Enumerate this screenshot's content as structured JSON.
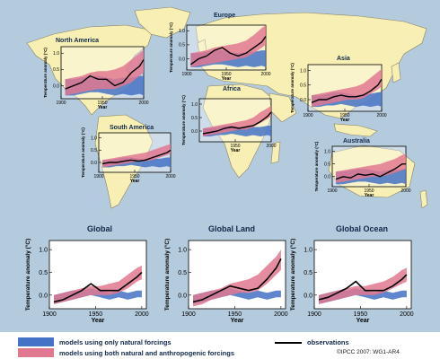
{
  "colors": {
    "ocean": "#b4cbdd",
    "land": "#f7efb3",
    "land_edge": "#8a8260",
    "lower_bg": "#b4cbdd",
    "natural": "#4472c4",
    "anthropogenic": "#e07890",
    "overlap": "#8a5a9a",
    "observation": "#000000"
  },
  "legend": {
    "natural_label": "models using only natural forcings",
    "anthro_label": "models using both natural and anthropogenic forcings",
    "obs_label": "observations"
  },
  "credit": "©IPCC  2007: WG1-AR4",
  "chart_data": [
    {
      "type": "area",
      "title": "North America",
      "ylabel": "Temperature anomaly (°C)",
      "xlabel": "Year",
      "xticks": [
        "1900",
        "1950",
        "2000"
      ],
      "yticks": [
        "0.0",
        "0.5",
        "1.0"
      ],
      "xlim": [
        1900,
        2000
      ],
      "ylim": [
        -0.4,
        1.2
      ],
      "x": [
        1905,
        1915,
        1925,
        1935,
        1945,
        1955,
        1965,
        1975,
        1985,
        1995,
        2000
      ],
      "observations": [
        -0.1,
        0.0,
        0.1,
        0.3,
        0.2,
        0.2,
        0.0,
        0.1,
        0.4,
        0.6,
        0.8
      ],
      "natural": {
        "low": [
          -0.3,
          -0.3,
          -0.25,
          -0.2,
          -0.2,
          -0.25,
          -0.3,
          -0.25,
          -0.3,
          -0.25,
          -0.3
        ],
        "high": [
          0.2,
          0.2,
          0.25,
          0.3,
          0.3,
          0.25,
          0.2,
          0.25,
          0.25,
          0.3,
          0.3
        ]
      },
      "anthropogenic": {
        "low": [
          -0.3,
          -0.25,
          -0.2,
          -0.15,
          -0.1,
          -0.1,
          -0.1,
          0.0,
          0.1,
          0.3,
          0.4
        ],
        "high": [
          0.2,
          0.25,
          0.3,
          0.4,
          0.45,
          0.45,
          0.5,
          0.6,
          0.8,
          1.0,
          1.1
        ]
      }
    },
    {
      "type": "area",
      "title": "Europe",
      "ylabel": "Temperature anomaly (°C)",
      "xlabel": "Year",
      "xticks": [
        "1900",
        "1950",
        "2000"
      ],
      "yticks": [
        "0.0",
        "0.5",
        "1.0"
      ],
      "xlim": [
        1900,
        2000
      ],
      "ylim": [
        -0.4,
        1.2
      ],
      "x": [
        1905,
        1915,
        1925,
        1935,
        1945,
        1955,
        1965,
        1975,
        1985,
        1995,
        2000
      ],
      "observations": [
        -0.2,
        0.0,
        0.1,
        0.3,
        0.4,
        0.2,
        0.1,
        0.2,
        0.4,
        0.6,
        0.8
      ],
      "natural": {
        "low": [
          -0.3,
          -0.3,
          -0.25,
          -0.2,
          -0.2,
          -0.25,
          -0.3,
          -0.25,
          -0.3,
          -0.25,
          -0.3
        ],
        "high": [
          0.2,
          0.2,
          0.25,
          0.3,
          0.3,
          0.25,
          0.2,
          0.25,
          0.25,
          0.3,
          0.3
        ]
      },
      "anthropogenic": {
        "low": [
          -0.3,
          -0.25,
          -0.2,
          -0.15,
          -0.1,
          -0.05,
          0.0,
          0.05,
          0.2,
          0.4,
          0.5
        ],
        "high": [
          0.2,
          0.25,
          0.3,
          0.4,
          0.45,
          0.5,
          0.55,
          0.65,
          0.85,
          1.1,
          1.2
        ]
      }
    },
    {
      "type": "area",
      "title": "Asia",
      "ylabel": "Temperature anomaly (°C)",
      "xlabel": "Year",
      "xticks": [
        "1900",
        "1950",
        "2000"
      ],
      "yticks": [
        "0.0",
        "0.5",
        "1.0"
      ],
      "xlim": [
        1900,
        2000
      ],
      "ylim": [
        -0.4,
        1.2
      ],
      "x": [
        1905,
        1915,
        1925,
        1935,
        1945,
        1955,
        1965,
        1975,
        1985,
        1995,
        2000
      ],
      "observations": [
        -0.1,
        0.0,
        0.0,
        0.1,
        0.15,
        0.1,
        0.1,
        0.15,
        0.3,
        0.5,
        0.7
      ],
      "natural": {
        "low": [
          -0.25,
          -0.25,
          -0.2,
          -0.2,
          -0.15,
          -0.2,
          -0.25,
          -0.2,
          -0.25,
          -0.2,
          -0.25
        ],
        "high": [
          0.15,
          0.15,
          0.2,
          0.25,
          0.25,
          0.2,
          0.15,
          0.2,
          0.2,
          0.25,
          0.25
        ]
      },
      "anthropogenic": {
        "low": [
          -0.25,
          -0.2,
          -0.15,
          -0.1,
          -0.05,
          0.0,
          0.0,
          0.05,
          0.2,
          0.35,
          0.45
        ],
        "high": [
          0.15,
          0.2,
          0.25,
          0.3,
          0.35,
          0.4,
          0.45,
          0.55,
          0.75,
          0.95,
          1.05
        ]
      }
    },
    {
      "type": "area",
      "title": "Africa",
      "ylabel": "Temperature anomaly (°C)",
      "xlabel": "Year",
      "xticks": [
        "1950",
        "2000"
      ],
      "yticks": [
        "0.0",
        "0.5",
        "1.0"
      ],
      "xlim": [
        1900,
        2000
      ],
      "ylim": [
        -0.4,
        1.2
      ],
      "x": [
        1905,
        1915,
        1925,
        1935,
        1945,
        1955,
        1965,
        1975,
        1985,
        1995,
        2000
      ],
      "observations": [
        -0.1,
        -0.05,
        0.0,
        0.1,
        0.15,
        0.1,
        0.15,
        0.2,
        0.35,
        0.55,
        0.7
      ],
      "natural": {
        "low": [
          -0.2,
          -0.2,
          -0.15,
          -0.15,
          -0.1,
          -0.15,
          -0.2,
          -0.15,
          -0.2,
          -0.15,
          -0.2
        ],
        "high": [
          0.1,
          0.1,
          0.15,
          0.2,
          0.2,
          0.15,
          0.1,
          0.15,
          0.15,
          0.2,
          0.2
        ]
      },
      "anthropogenic": {
        "low": [
          -0.2,
          -0.15,
          -0.1,
          -0.05,
          0.0,
          0.05,
          0.05,
          0.15,
          0.3,
          0.45,
          0.55
        ],
        "high": [
          0.1,
          0.15,
          0.2,
          0.25,
          0.3,
          0.35,
          0.4,
          0.5,
          0.7,
          0.85,
          0.95
        ]
      }
    },
    {
      "type": "area",
      "title": "South America",
      "ylabel": "Temperature anomaly (°C)",
      "xlabel": "Year",
      "xticks": [
        "1900",
        "1950",
        "2000"
      ],
      "yticks": [
        "0.0",
        "0.5",
        "1.0"
      ],
      "xlim": [
        1900,
        2000
      ],
      "ylim": [
        -0.4,
        1.2
      ],
      "x": [
        1905,
        1915,
        1925,
        1935,
        1945,
        1955,
        1965,
        1975,
        1985,
        1995,
        2000
      ],
      "observations": [
        -0.05,
        0.0,
        0.0,
        0.05,
        0.1,
        0.05,
        0.1,
        0.2,
        0.3,
        0.4,
        0.5
      ],
      "natural": {
        "low": [
          -0.2,
          -0.2,
          -0.15,
          -0.15,
          -0.1,
          -0.15,
          -0.2,
          -0.15,
          -0.2,
          -0.15,
          -0.2
        ],
        "high": [
          0.1,
          0.1,
          0.15,
          0.2,
          0.2,
          0.15,
          0.1,
          0.15,
          0.15,
          0.2,
          0.2
        ]
      },
      "anthropogenic": {
        "low": [
          -0.2,
          -0.15,
          -0.1,
          -0.05,
          0.0,
          0.05,
          0.05,
          0.1,
          0.2,
          0.3,
          0.35
        ],
        "high": [
          0.1,
          0.15,
          0.2,
          0.25,
          0.3,
          0.35,
          0.4,
          0.5,
          0.6,
          0.7,
          0.75
        ]
      }
    },
    {
      "type": "area",
      "title": "Australia",
      "ylabel": "Temperature anomaly (°C)",
      "xlabel": "Year",
      "xticks": [
        "1900",
        "1950",
        "2000"
      ],
      "yticks": [
        "0.0",
        "0.5",
        "1.0"
      ],
      "xlim": [
        1900,
        2000
      ],
      "ylim": [
        -0.4,
        1.2
      ],
      "x": [
        1905,
        1915,
        1925,
        1935,
        1945,
        1955,
        1965,
        1975,
        1985,
        1995,
        2000
      ],
      "observations": [
        -0.1,
        0.0,
        -0.05,
        0.1,
        0.05,
        0.1,
        0.0,
        0.15,
        0.3,
        0.5,
        0.5
      ],
      "natural": {
        "low": [
          -0.3,
          -0.3,
          -0.25,
          -0.2,
          -0.2,
          -0.25,
          -0.3,
          -0.25,
          -0.3,
          -0.25,
          -0.3
        ],
        "high": [
          0.2,
          0.2,
          0.25,
          0.3,
          0.3,
          0.25,
          0.2,
          0.25,
          0.25,
          0.3,
          0.3
        ]
      },
      "anthropogenic": {
        "low": [
          -0.25,
          -0.2,
          -0.15,
          -0.1,
          -0.05,
          0.0,
          0.0,
          0.05,
          0.15,
          0.25,
          0.3
        ],
        "high": [
          0.2,
          0.25,
          0.3,
          0.35,
          0.4,
          0.45,
          0.5,
          0.6,
          0.7,
          0.85,
          0.9
        ]
      }
    },
    {
      "type": "area",
      "title": "Global",
      "ylabel": "Temperature anomaly (°C)",
      "xlabel": "Year",
      "xticks": [
        "1900",
        "1950",
        "2000"
      ],
      "yticks": [
        "0.0",
        "0.5",
        "1.0"
      ],
      "xlim": [
        1900,
        2005
      ],
      "ylim": [
        -0.3,
        1.2
      ],
      "x": [
        1905,
        1915,
        1925,
        1935,
        1945,
        1955,
        1965,
        1975,
        1985,
        1995,
        2000
      ],
      "observations": [
        -0.15,
        -0.1,
        0.0,
        0.1,
        0.25,
        0.1,
        0.1,
        0.1,
        0.25,
        0.4,
        0.5
      ],
      "natural": {
        "low": [
          -0.2,
          -0.15,
          -0.1,
          -0.05,
          0.0,
          -0.05,
          -0.1,
          -0.05,
          -0.1,
          -0.05,
          -0.05
        ],
        "high": [
          0.0,
          0.05,
          0.1,
          0.1,
          0.15,
          0.1,
          0.05,
          0.1,
          0.05,
          0.1,
          0.1
        ]
      },
      "anthropogenic": {
        "low": [
          -0.2,
          -0.15,
          -0.1,
          -0.05,
          0.0,
          0.0,
          0.0,
          0.05,
          0.15,
          0.3,
          0.35
        ],
        "high": [
          0.0,
          0.05,
          0.1,
          0.15,
          0.2,
          0.2,
          0.25,
          0.3,
          0.45,
          0.6,
          0.65
        ]
      }
    },
    {
      "type": "area",
      "title": "Global Land",
      "ylabel": "Temperature anomaly (°C)",
      "xlabel": "Year",
      "xticks": [
        "1900",
        "1950",
        "2000"
      ],
      "yticks": [
        "0.0",
        "0.5",
        "1.0"
      ],
      "xlim": [
        1900,
        2005
      ],
      "ylim": [
        -0.3,
        1.2
      ],
      "x": [
        1905,
        1915,
        1925,
        1935,
        1945,
        1955,
        1965,
        1975,
        1985,
        1995,
        2000
      ],
      "observations": [
        -0.15,
        -0.1,
        0.0,
        0.1,
        0.2,
        0.15,
        0.1,
        0.15,
        0.35,
        0.6,
        0.8
      ],
      "natural": {
        "low": [
          -0.2,
          -0.15,
          -0.1,
          -0.05,
          0.0,
          -0.05,
          -0.1,
          -0.05,
          -0.1,
          -0.05,
          -0.05
        ],
        "high": [
          0.0,
          0.05,
          0.1,
          0.1,
          0.15,
          0.1,
          0.05,
          0.1,
          0.05,
          0.1,
          0.1
        ]
      },
      "anthropogenic": {
        "low": [
          -0.25,
          -0.2,
          -0.1,
          -0.05,
          0.0,
          0.05,
          0.05,
          0.1,
          0.25,
          0.45,
          0.55
        ],
        "high": [
          0.0,
          0.05,
          0.1,
          0.15,
          0.25,
          0.3,
          0.35,
          0.45,
          0.65,
          0.85,
          1.0
        ]
      }
    },
    {
      "type": "area",
      "title": "Global Ocean",
      "ylabel": "Temperature anomaly (°C)",
      "xlabel": "Year",
      "xticks": [
        "1900",
        "1950",
        "2000"
      ],
      "yticks": [
        "0.0",
        "0.5",
        "1.0"
      ],
      "xlim": [
        1900,
        2005
      ],
      "ylim": [
        -0.3,
        1.2
      ],
      "x": [
        1905,
        1915,
        1925,
        1935,
        1945,
        1955,
        1965,
        1975,
        1985,
        1995,
        2000
      ],
      "observations": [
        -0.1,
        -0.05,
        0.05,
        0.15,
        0.3,
        0.1,
        0.1,
        0.1,
        0.2,
        0.35,
        0.45
      ],
      "natural": {
        "low": [
          -0.2,
          -0.15,
          -0.1,
          -0.05,
          0.0,
          -0.05,
          -0.1,
          -0.05,
          -0.1,
          -0.05,
          -0.05
        ],
        "high": [
          0.0,
          0.05,
          0.1,
          0.1,
          0.15,
          0.1,
          0.05,
          0.1,
          0.05,
          0.1,
          0.1
        ]
      },
      "anthropogenic": {
        "low": [
          -0.2,
          -0.15,
          -0.1,
          -0.05,
          0.0,
          0.0,
          0.0,
          0.05,
          0.15,
          0.25,
          0.3
        ],
        "high": [
          0.0,
          0.05,
          0.1,
          0.15,
          0.2,
          0.2,
          0.25,
          0.3,
          0.4,
          0.55,
          0.6
        ]
      }
    }
  ]
}
